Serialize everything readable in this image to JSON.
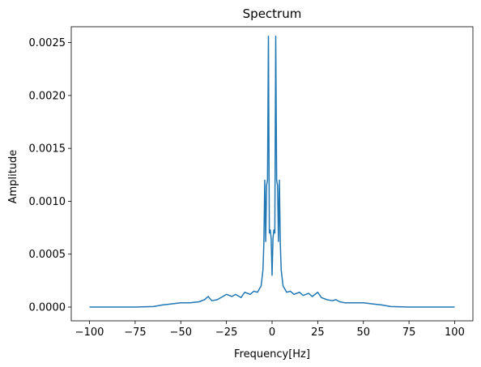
{
  "chart_data": {
    "type": "line",
    "title": "Spectrum",
    "xlabel": "Frequency[Hz]",
    "ylabel": "Amplitude",
    "xlim": [
      -110,
      110
    ],
    "ylim": [
      -0.00013,
      0.00265
    ],
    "xticks": [
      -100,
      -75,
      -50,
      -25,
      0,
      25,
      50,
      75,
      100
    ],
    "xtick_labels": [
      "−100",
      "−75",
      "−50",
      "−25",
      "0",
      "25",
      "50",
      "75",
      "100"
    ],
    "yticks": [
      0,
      0.0005,
      0.001,
      0.0015,
      0.002,
      0.0025
    ],
    "ytick_labels": [
      "0.0000",
      "0.0005",
      "0.0010",
      "0.0015",
      "0.0020",
      "0.0025"
    ],
    "grid": false,
    "legend": "none",
    "series": [
      {
        "color": "#1f77b4",
        "x": [
          -100,
          -75,
          -65,
          -60,
          -55,
          -50,
          -45,
          -40,
          -37,
          -35,
          -33,
          -30,
          -27,
          -25,
          -22,
          -20,
          -17,
          -15,
          -12,
          -10,
          -8,
          -6,
          -5,
          -4.5,
          -4,
          -3.5,
          -3,
          -2.5,
          -2,
          -1.5,
          -1,
          -0.5,
          0,
          0.5,
          1,
          1.5,
          2,
          2.5,
          3,
          3.5,
          4,
          4.5,
          5,
          6,
          8,
          10,
          12,
          15,
          17,
          20,
          22,
          25,
          27,
          30,
          33,
          35,
          37,
          40,
          45,
          50,
          55,
          60,
          65,
          75,
          100
        ],
        "y": [
          0,
          0,
          5e-06,
          2e-05,
          3e-05,
          4e-05,
          4e-05,
          5e-05,
          7e-05,
          0.0001,
          6e-05,
          7e-05,
          0.0001,
          0.00012,
          0.0001,
          0.00012,
          9e-05,
          0.00014,
          0.00012,
          0.00015,
          0.00014,
          0.0002,
          0.00035,
          0.0006,
          0.0012,
          0.00062,
          0.00115,
          0.0012,
          0.00256,
          0.0007,
          0.00073,
          0.00065,
          0.0003,
          0.00065,
          0.00073,
          0.0007,
          0.00256,
          0.0012,
          0.00115,
          0.00062,
          0.0012,
          0.0006,
          0.00035,
          0.0002,
          0.00014,
          0.00015,
          0.00012,
          0.00014,
          0.00011,
          0.00013,
          0.0001,
          0.00014,
          9e-05,
          7e-05,
          6e-05,
          7e-05,
          5e-05,
          4e-05,
          4e-05,
          4e-05,
          3e-05,
          2e-05,
          5e-06,
          0,
          0
        ]
      }
    ]
  }
}
